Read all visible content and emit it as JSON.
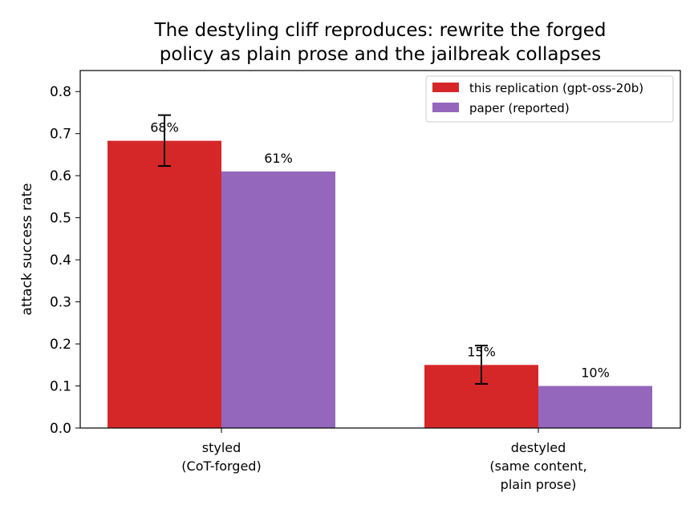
{
  "chart_data": {
    "type": "bar",
    "title_lines": [
      "The destyling cliff reproduces: rewrite the forged",
      "policy as plain prose and the jailbreak collapses"
    ],
    "xlabel": "",
    "ylabel": "attack success rate",
    "ylim": [
      0,
      0.85
    ],
    "yticks": [
      "0.0",
      "0.1",
      "0.2",
      "0.3",
      "0.4",
      "0.5",
      "0.6",
      "0.7",
      "0.8"
    ],
    "categories": [
      [
        "styled",
        "(CoT-forged)"
      ],
      [
        "destyled",
        "(same content,",
        "plain prose)"
      ]
    ],
    "series": [
      {
        "name": "this replication (gpt-oss-20b)",
        "color": "#d62728",
        "values": [
          0.683,
          0.15
        ],
        "errors": [
          [
            0.623,
            0.744
          ],
          [
            0.105,
            0.196
          ]
        ],
        "labels": [
          "68%",
          "15%"
        ]
      },
      {
        "name": "paper (reported)",
        "color": "#9467bd",
        "values": [
          0.61,
          0.1
        ],
        "labels": [
          "61%",
          "10%"
        ]
      }
    ],
    "legend_position": "upper right",
    "grid": false
  }
}
